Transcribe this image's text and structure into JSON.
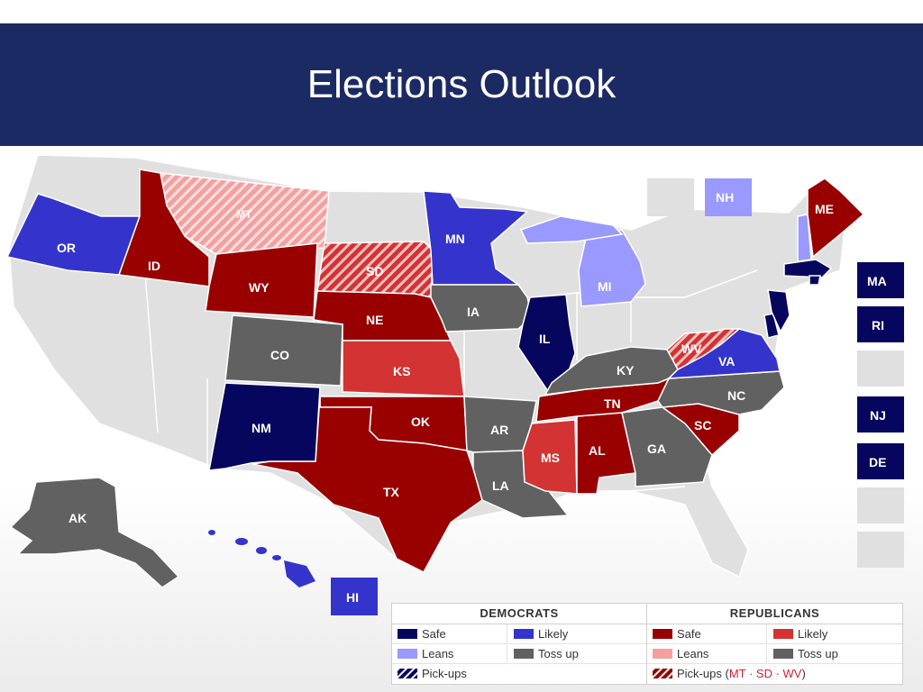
{
  "title": "Elections Outlook",
  "colors": {
    "dem_safe": "#06065e",
    "dem_likely": "#3434cc",
    "dem_leans": "#9999ff",
    "gop_safe": "#990000",
    "gop_likely": "#d33333",
    "gop_leans": "#f4a0a0",
    "toss_up": "#616161",
    "no_race": "#e0e0e0"
  },
  "map": {
    "states": {
      "OR": "OR",
      "ID": "ID",
      "MT": "MT",
      "WY": "WY",
      "SD": "SD",
      "NE": "NE",
      "MN": "MN",
      "IA": "IA",
      "IL": "IL",
      "MI": "MI",
      "CO": "CO",
      "KS": "KS",
      "OK": "OK",
      "TX": "TX",
      "NM": "NM",
      "AR": "AR",
      "LA": "LA",
      "MS": "MS",
      "AL": "AL",
      "TN": "TN",
      "KY": "KY",
      "GA": "GA",
      "SC": "SC",
      "NC": "NC",
      "VA": "VA",
      "WV": "WV",
      "ME": "ME",
      "AK": "AK"
    },
    "side_boxes": {
      "NH": "NH",
      "MA": "MA",
      "RI": "RI",
      "NJ": "NJ",
      "DE": "DE",
      "HI": "HI"
    }
  },
  "legend": {
    "democrats": {
      "header": "DEMOCRATS",
      "safe": "Safe",
      "likely": "Likely",
      "leans": "Leans",
      "toss_up": "Toss up",
      "pickups": "Pick-ups"
    },
    "republicans": {
      "header": "REPUBLICANS",
      "safe": "Safe",
      "likely": "Likely",
      "leans": "Leans",
      "toss_up": "Toss up",
      "pickups": "Pick-ups",
      "pickup_open": "(",
      "pickup_states": "MT · SD · WV",
      "pickup_close": ")"
    }
  }
}
